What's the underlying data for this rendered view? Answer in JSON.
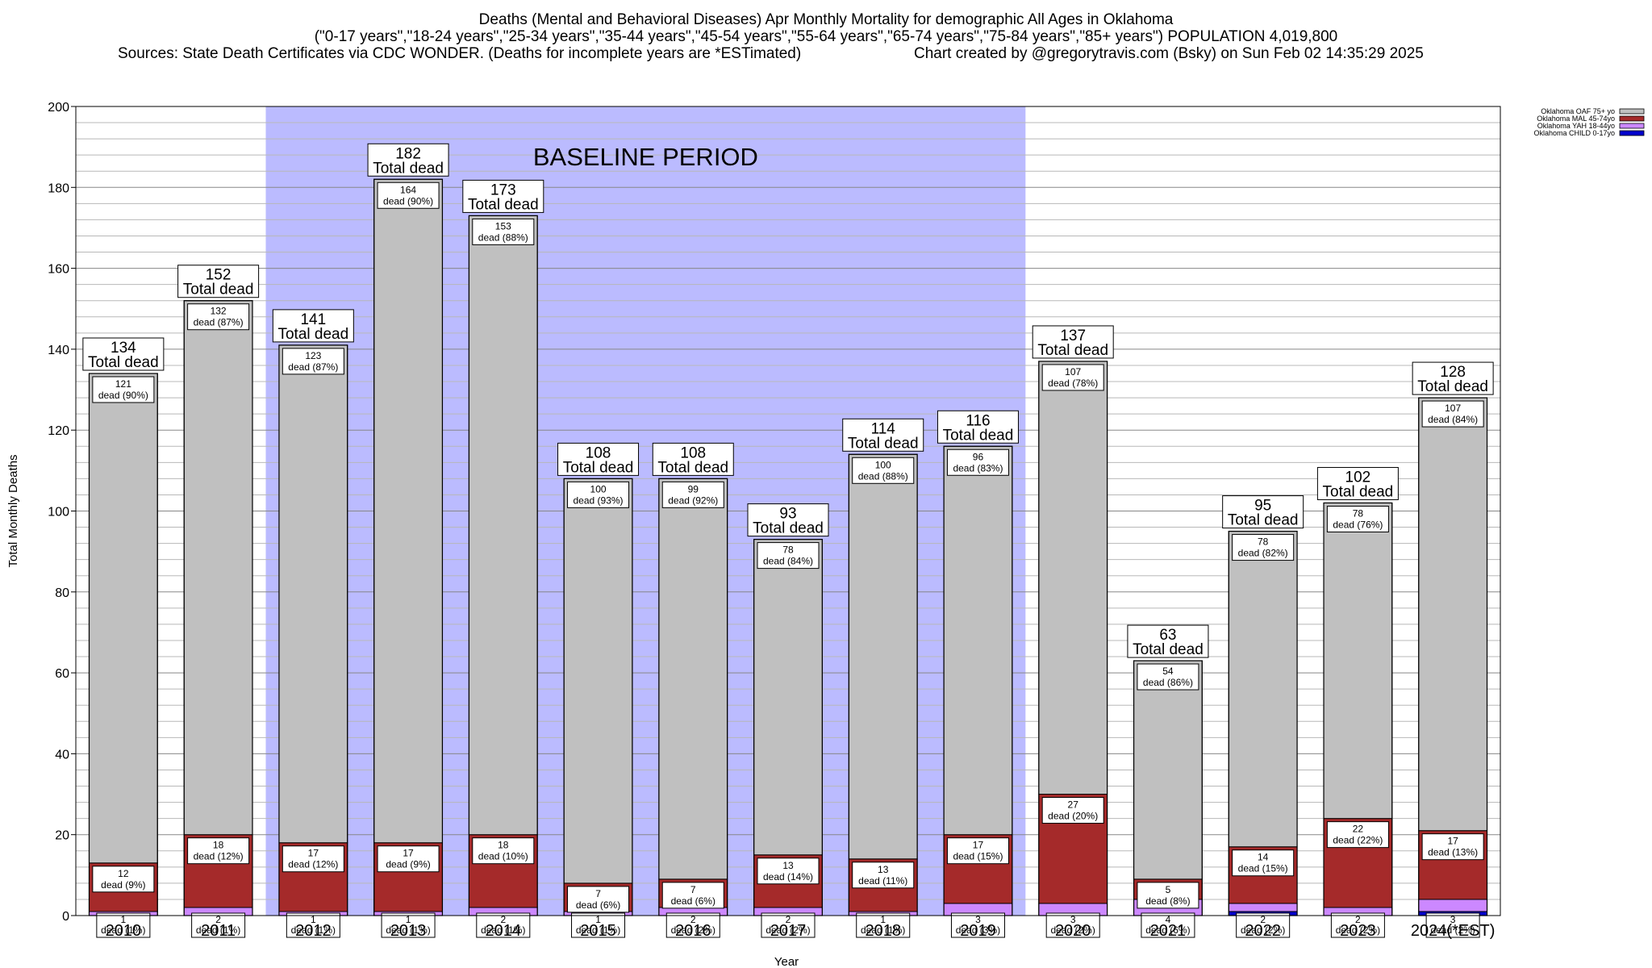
{
  "header": {
    "title": "Deaths (Mental and Behavioral Diseases) Apr Monthly Mortality for demographic All Ages in Oklahoma",
    "subtitle": "(\"0-17 years\",\"18-24 years\",\"25-34 years\",\"35-44 years\",\"45-54 years\",\"55-64 years\",\"65-74 years\",\"75-84 years\",\"85+ years\") POPULATION 4,019,800",
    "sources": "Sources: State Death Certificates via CDC WONDER. (Deaths for incomplete years are *ESTimated)",
    "credit": "Chart created by @gregorytravis.com (Bsky) on Sun Feb 02 14:35:29 2025"
  },
  "chart_data": {
    "type": "bar",
    "stacked": true,
    "xlabel": "Year",
    "ylabel": "Total Monthly Deaths",
    "ylim": [
      0,
      200
    ],
    "yticks": [
      0,
      20,
      40,
      60,
      80,
      100,
      120,
      140,
      160,
      180,
      200
    ],
    "grid": true,
    "legend_position": "top-right",
    "baseline_label": "BASELINE PERIOD",
    "baseline_range": [
      "2012",
      "2019"
    ],
    "total_label_suffix": "Total dead",
    "segment_label_word": "dead",
    "categories": [
      "2010",
      "2011",
      "2012",
      "2013",
      "2014",
      "2015",
      "2016",
      "2017",
      "2018",
      "2019",
      "2020",
      "2021",
      "2022",
      "2023",
      "2024(*EST)"
    ],
    "totals": [
      134,
      152,
      141,
      182,
      173,
      108,
      108,
      93,
      114,
      116,
      137,
      63,
      95,
      102,
      128
    ],
    "series": [
      {
        "name": "Oklahoma CHILD 0-17yo",
        "color": "#0000cc",
        "values": [
          0,
          0,
          0,
          0,
          0,
          0,
          0,
          0,
          0,
          0,
          0,
          0,
          1,
          0,
          1
        ]
      },
      {
        "name": "Oklahoma YAH 18-44yo",
        "color": "#cc88ff",
        "values": [
          1,
          2,
          1,
          1,
          2,
          1,
          2,
          2,
          1,
          3,
          3,
          4,
          2,
          2,
          3
        ],
        "pct": [
          "1%",
          "1%",
          "1%",
          "1%",
          "1%",
          "1%",
          "2%",
          "2%",
          "1%",
          "3%",
          "2%",
          "6%",
          "2%",
          "2%",
          "2%"
        ]
      },
      {
        "name": "Oklahoma MAL 45-74yo",
        "color": "#a52a2a",
        "values": [
          12,
          18,
          17,
          17,
          18,
          7,
          7,
          13,
          13,
          17,
          27,
          5,
          14,
          22,
          17
        ],
        "pct": [
          "9%",
          "12%",
          "12%",
          "9%",
          "10%",
          "6%",
          "6%",
          "14%",
          "11%",
          "15%",
          "20%",
          "8%",
          "15%",
          "22%",
          "13%"
        ]
      },
      {
        "name": "Oklahoma OAF 75+ yo",
        "color": "#c0c0c0",
        "values": [
          121,
          132,
          123,
          164,
          153,
          100,
          99,
          78,
          100,
          96,
          107,
          54,
          78,
          78,
          107
        ],
        "pct": [
          "90%",
          "87%",
          "87%",
          "90%",
          "88%",
          "93%",
          "92%",
          "84%",
          "88%",
          "83%",
          "78%",
          "86%",
          "82%",
          "76%",
          "84%"
        ]
      }
    ]
  }
}
